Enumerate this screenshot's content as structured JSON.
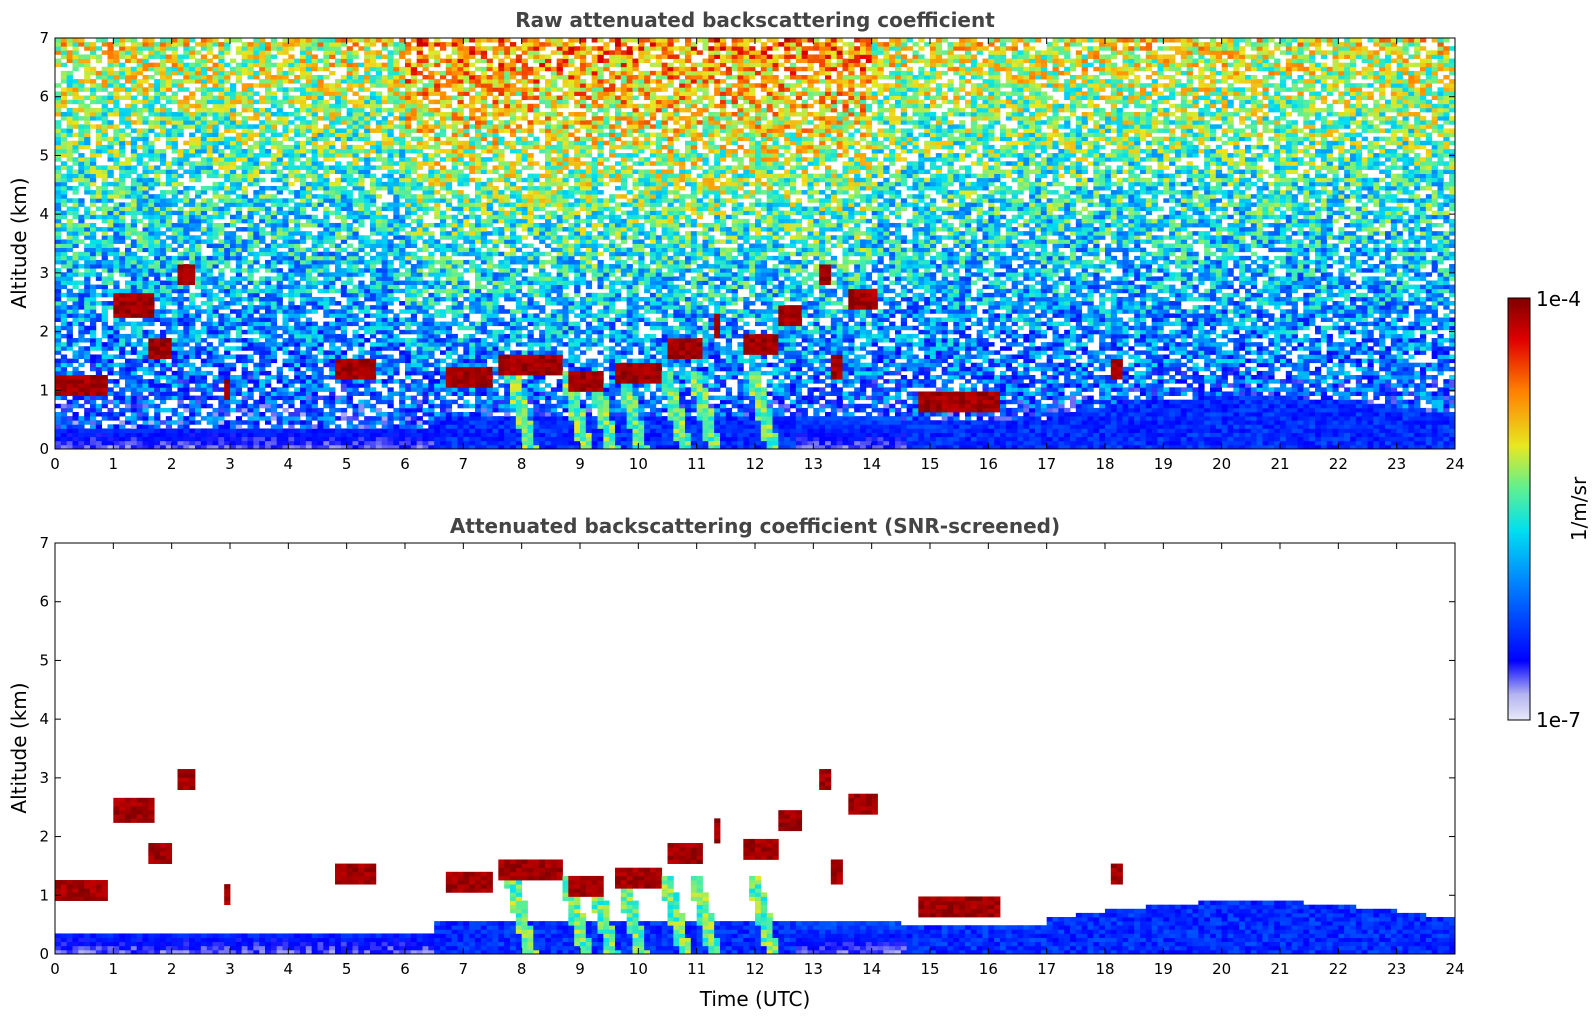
{
  "chart_data": [
    {
      "type": "heatmap",
      "title": "Raw attenuated backscattering coefficient",
      "xlabel": "",
      "ylabel": "Altitude (km)",
      "xlim": [
        0,
        24
      ],
      "ylim": [
        0,
        7
      ],
      "x_ticks": [
        "0",
        "1",
        "2",
        "3",
        "4",
        "5",
        "6",
        "7",
        "8",
        "9",
        "10",
        "11",
        "12",
        "13",
        "14",
        "15",
        "16",
        "17",
        "18",
        "19",
        "20",
        "21",
        "22",
        "23",
        "24"
      ],
      "y_ticks": [
        "0",
        "1",
        "2",
        "3",
        "4",
        "5",
        "6",
        "7"
      ],
      "grid": false,
      "screened": false
    },
    {
      "type": "heatmap",
      "title": "Attenuated backscattering coefficient (SNR-screened)",
      "xlabel": "Time (UTC)",
      "ylabel": "Altitude (km)",
      "xlim": [
        0,
        24
      ],
      "ylim": [
        0,
        7
      ],
      "x_ticks": [
        "0",
        "1",
        "2",
        "3",
        "4",
        "5",
        "6",
        "7",
        "8",
        "9",
        "10",
        "11",
        "12",
        "13",
        "14",
        "15",
        "16",
        "17",
        "18",
        "19",
        "20",
        "21",
        "22",
        "23",
        "24"
      ],
      "y_ticks": [
        "0",
        "1",
        "2",
        "3",
        "4",
        "5",
        "6",
        "7"
      ],
      "grid": false,
      "screened": true
    }
  ],
  "colorbar": {
    "label": "1/m/sr",
    "max_label": "1e-4",
    "min_label": "1e-7",
    "range": [
      1e-07,
      0.0001
    ],
    "scale": "log",
    "colormap": "jet",
    "colors": [
      "#e8e8f8",
      "#b4b4f0",
      "#0000ff",
      "#0080ff",
      "#00e0f0",
      "#60f090",
      "#e8e820",
      "#ff8000",
      "#e00000",
      "#800000"
    ]
  },
  "features": {
    "clouds": [
      {
        "t0": 0.0,
        "t1": 0.95,
        "alt": 1.1
      },
      {
        "t0": 1.0,
        "t1": 1.7,
        "alt": 2.45
      },
      {
        "t0": 1.6,
        "t1": 2.05,
        "alt": 1.7
      },
      {
        "t0": 2.1,
        "t1": 2.4,
        "alt": 3.0
      },
      {
        "t0": 2.95,
        "t1": 3.05,
        "alt": 1.0
      },
      {
        "t0": 4.8,
        "t1": 5.55,
        "alt": 1.35
      },
      {
        "t0": 6.7,
        "t1": 7.5,
        "alt": 1.25
      },
      {
        "t0": 7.6,
        "t1": 8.7,
        "alt": 1.45
      },
      {
        "t0": 8.8,
        "t1": 9.4,
        "alt": 1.15
      },
      {
        "t0": 9.6,
        "t1": 10.4,
        "alt": 1.3
      },
      {
        "t0": 10.5,
        "t1": 11.1,
        "alt": 1.7
      },
      {
        "t0": 11.3,
        "t1": 11.45,
        "alt": 2.1
      },
      {
        "t0": 11.8,
        "t1": 12.4,
        "alt": 1.8
      },
      {
        "t0": 12.4,
        "t1": 12.85,
        "alt": 2.3
      },
      {
        "t0": 13.1,
        "t1": 13.3,
        "alt": 3.0
      },
      {
        "t0": 13.3,
        "t1": 13.5,
        "alt": 1.4
      },
      {
        "t0": 13.6,
        "t1": 14.05,
        "alt": 2.55
      },
      {
        "t0": 14.8,
        "t1": 16.2,
        "alt": 0.8
      },
      {
        "t0": 18.1,
        "t1": 18.3,
        "alt": 1.35
      }
    ],
    "plumes": [
      8.15,
      9.1,
      9.55,
      10.05,
      10.8,
      11.3,
      12.3
    ]
  }
}
